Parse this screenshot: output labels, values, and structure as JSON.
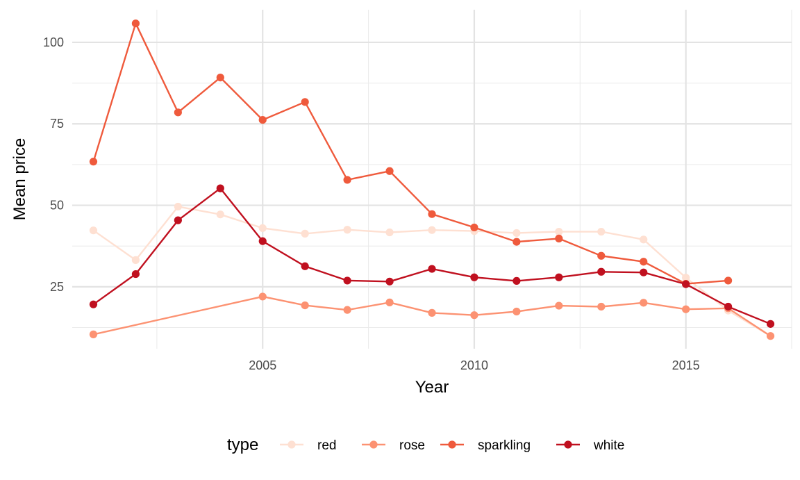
{
  "chart_data": {
    "type": "line",
    "xlabel": "Year",
    "ylabel": "Mean price",
    "xlim": [
      2000.5,
      2017.5
    ],
    "ylim": [
      6,
      110
    ],
    "x_ticks": [
      2005,
      2010,
      2015
    ],
    "x_minor": [
      2002.5,
      2007.5,
      2012.5,
      2017.5
    ],
    "y_ticks": [
      25,
      50,
      75,
      100
    ],
    "y_minor": [
      12.5,
      37.5,
      62.5,
      87.5
    ],
    "grid": true,
    "legend_title": "type",
    "legend_position": "bottom",
    "series": [
      {
        "name": "red",
        "color": "#fee0d2",
        "points": [
          [
            2001,
            42.3
          ],
          [
            2002,
            33.2
          ],
          [
            2003,
            49.6
          ],
          [
            2004,
            47.2
          ],
          [
            2005,
            43.0
          ],
          [
            2006,
            41.3
          ],
          [
            2007,
            42.5
          ],
          [
            2008,
            41.7
          ],
          [
            2009,
            42.4
          ],
          [
            2010,
            42.1
          ],
          [
            2011,
            41.5
          ],
          [
            2012,
            41.9
          ],
          [
            2013,
            41.9
          ],
          [
            2014,
            39.5
          ],
          [
            2015,
            27.8
          ],
          [
            2016,
            17.7
          ],
          [
            2017,
            9.9
          ]
        ]
      },
      {
        "name": "rose",
        "color": "#fc9272",
        "points": [
          [
            2001,
            10.4
          ],
          [
            2005,
            22.0
          ],
          [
            2006,
            19.3
          ],
          [
            2007,
            17.9
          ],
          [
            2008,
            20.2
          ],
          [
            2009,
            17.0
          ],
          [
            2010,
            16.3
          ],
          [
            2011,
            17.4
          ],
          [
            2012,
            19.2
          ],
          [
            2013,
            18.9
          ],
          [
            2014,
            20.1
          ],
          [
            2015,
            18.1
          ],
          [
            2016,
            18.4
          ],
          [
            2017,
            9.9
          ]
        ]
      },
      {
        "name": "sparkling",
        "color": "#ef5a3c",
        "points": [
          [
            2001,
            63.4
          ],
          [
            2002,
            105.8
          ],
          [
            2003,
            78.5
          ],
          [
            2004,
            89.2
          ],
          [
            2005,
            76.2
          ],
          [
            2006,
            81.7
          ],
          [
            2007,
            57.8
          ],
          [
            2008,
            60.5
          ],
          [
            2009,
            47.3
          ],
          [
            2010,
            43.2
          ],
          [
            2011,
            38.8
          ],
          [
            2012,
            39.8
          ],
          [
            2013,
            34.5
          ],
          [
            2014,
            32.7
          ],
          [
            2015,
            25.9
          ],
          [
            2016,
            26.9
          ]
        ]
      },
      {
        "name": "white",
        "color": "#c0101f",
        "points": [
          [
            2001,
            19.6
          ],
          [
            2002,
            28.9
          ],
          [
            2003,
            45.4
          ],
          [
            2004,
            55.2
          ],
          [
            2005,
            39.0
          ],
          [
            2006,
            31.3
          ],
          [
            2007,
            26.9
          ],
          [
            2008,
            26.6
          ],
          [
            2009,
            30.5
          ],
          [
            2010,
            27.9
          ],
          [
            2011,
            26.8
          ],
          [
            2012,
            27.9
          ],
          [
            2013,
            29.6
          ],
          [
            2014,
            29.4
          ],
          [
            2015,
            25.8
          ],
          [
            2016,
            18.9
          ],
          [
            2017,
            13.6
          ]
        ]
      }
    ]
  }
}
